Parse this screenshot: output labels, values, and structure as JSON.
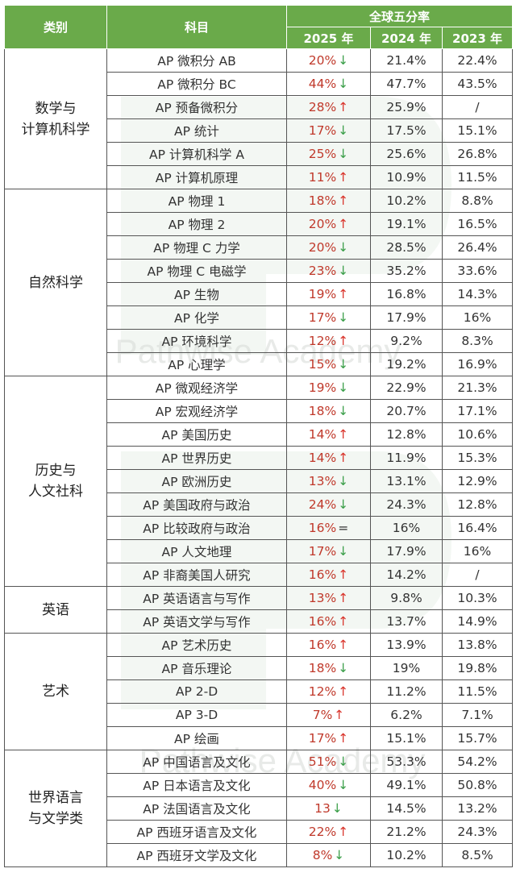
{
  "header": {
    "category": "类别",
    "subject": "科目",
    "rate_group": "全球五分率",
    "years": [
      "2025 年",
      "2024 年",
      "2023 年"
    ]
  },
  "watermark": "Pathwise Academy",
  "colors": {
    "header_bg": "#6aaa4a",
    "up": "#d9342b",
    "down": "#3a9e48",
    "value_2025": "#c0392b"
  },
  "groups": [
    {
      "name": "数学与\n计算机科学",
      "rows": [
        {
          "subject": "AP 微积分 AB",
          "y2025": "20%",
          "trend": "↓",
          "y2024": "21.4%",
          "y2023": "22.4%"
        },
        {
          "subject": "AP 微积分 BC",
          "y2025": "44%",
          "trend": "↓",
          "y2024": "47.7%",
          "y2023": "43.5%"
        },
        {
          "subject": "AP 预备微积分",
          "y2025": "28%",
          "trend": "↑",
          "y2024": "25.9%",
          "y2023": "/"
        },
        {
          "subject": "AP 统计",
          "y2025": "17%",
          "trend": "↓",
          "y2024": "17.5%",
          "y2023": "15.1%"
        },
        {
          "subject": "AP 计算机科学 A",
          "y2025": "25%",
          "trend": "↓",
          "y2024": "25.6%",
          "y2023": "26.8%"
        },
        {
          "subject": "AP 计算机原理",
          "y2025": "11%",
          "trend": "↑",
          "y2024": "10.9%",
          "y2023": "11.5%"
        }
      ]
    },
    {
      "name": "自然科学",
      "rows": [
        {
          "subject": "AP 物理 1",
          "y2025": "18%",
          "trend": "↑",
          "y2024": "10.2%",
          "y2023": "8.8%"
        },
        {
          "subject": "AP 物理 2",
          "y2025": "20%",
          "trend": "↑",
          "y2024": "19.1%",
          "y2023": "16.5%"
        },
        {
          "subject": "AP 物理 C 力学",
          "y2025": "20%",
          "trend": "↓",
          "y2024": "28.5%",
          "y2023": "26.4%"
        },
        {
          "subject": "AP 物理 C 电磁学",
          "y2025": "23%",
          "trend": "↓",
          "y2024": "35.2%",
          "y2023": "33.6%"
        },
        {
          "subject": "AP 生物",
          "y2025": "19%",
          "trend": "↑",
          "y2024": "16.8%",
          "y2023": "14.3%"
        },
        {
          "subject": "AP 化学",
          "y2025": "17%",
          "trend": "↓",
          "y2024": "17.9%",
          "y2023": "16%"
        },
        {
          "subject": "AP 环境科学",
          "y2025": "12%",
          "trend": "↑",
          "y2024": "9.2%",
          "y2023": "8.3%"
        },
        {
          "subject": "AP 心理学",
          "y2025": "15%",
          "trend": "↓",
          "y2024": "19.2%",
          "y2023": "16.9%"
        }
      ]
    },
    {
      "name": "历史与\n人文社科",
      "rows": [
        {
          "subject": "AP 微观经济学",
          "y2025": "19%",
          "trend": "↓",
          "y2024": "22.9%",
          "y2023": "21.3%"
        },
        {
          "subject": "AP 宏观经济学",
          "y2025": "18%",
          "trend": "↓",
          "y2024": "20.7%",
          "y2023": "17.1%"
        },
        {
          "subject": "AP 美国历史",
          "y2025": "14%",
          "trend": "↑",
          "y2024": "12.8%",
          "y2023": "10.6%"
        },
        {
          "subject": "AP 世界历史",
          "y2025": "14%",
          "trend": "↑",
          "y2024": "11.9%",
          "y2023": "15.3%"
        },
        {
          "subject": "AP 欧洲历史",
          "y2025": "13%",
          "trend": "↓",
          "y2024": "13.1%",
          "y2023": "12.9%"
        },
        {
          "subject": "AP 美国政府与政治",
          "y2025": "24%",
          "trend": "↓",
          "y2024": "24.3%",
          "y2023": "12.8%"
        },
        {
          "subject": "AP 比较政府与政治",
          "y2025": "16%",
          "trend": "=",
          "y2024": "16%",
          "y2023": "16.4%"
        },
        {
          "subject": "AP 人文地理",
          "y2025": "17%",
          "trend": "↓",
          "y2024": "17.9%",
          "y2023": "16%"
        },
        {
          "subject": "AP 非裔美国人研究",
          "y2025": "16%",
          "trend": "↑",
          "y2024": "14.2%",
          "y2023": "/"
        }
      ]
    },
    {
      "name": "英语",
      "rows": [
        {
          "subject": "AP 英语语言与写作",
          "y2025": "13%",
          "trend": "↑",
          "y2024": "9.8%",
          "y2023": "10.3%"
        },
        {
          "subject": "AP 英语文学与写作",
          "y2025": "16%",
          "trend": "↑",
          "y2024": "13.7%",
          "y2023": "14.9%"
        }
      ]
    },
    {
      "name": "艺术",
      "rows": [
        {
          "subject": "AP 艺术历史",
          "y2025": "16%",
          "trend": "↑",
          "y2024": "13.9%",
          "y2023": "13.8%"
        },
        {
          "subject": "AP 音乐理论",
          "y2025": "18%",
          "trend": "↓",
          "y2024": "19%",
          "y2023": "19.8%"
        },
        {
          "subject": "AP 2-D",
          "y2025": "12%",
          "trend": "↑",
          "y2024": "11.2%",
          "y2023": "11.5%"
        },
        {
          "subject": "AP 3-D",
          "y2025": "7%",
          "trend": "↑",
          "y2024": "6.2%",
          "y2023": "7.1%"
        },
        {
          "subject": "AP 绘画",
          "y2025": "17%",
          "trend": "↑",
          "y2024": "15.1%",
          "y2023": "15.7%"
        }
      ]
    },
    {
      "name": "世界语言\n与文学类",
      "rows": [
        {
          "subject": "AP 中国语言及文化",
          "y2025": "51%",
          "trend": "↓",
          "y2024": "53.3%",
          "y2023": "54.2%"
        },
        {
          "subject": "AP 日本语言及文化",
          "y2025": "40%",
          "trend": "↓",
          "y2024": "49.1%",
          "y2023": "50.8%"
        },
        {
          "subject": "AP 法国语言及文化",
          "y2025": "13",
          "trend": "↓",
          "y2024": "14.5%",
          "y2023": "13.2%"
        },
        {
          "subject": "AP 西班牙语言及文化",
          "y2025": "22%",
          "trend": "↑",
          "y2024": "21.2%",
          "y2023": "24.3%"
        },
        {
          "subject": "AP 西班牙文学及文化",
          "y2025": "8%",
          "trend": "↓",
          "y2024": "10.2%",
          "y2023": "8.5%"
        }
      ]
    }
  ]
}
